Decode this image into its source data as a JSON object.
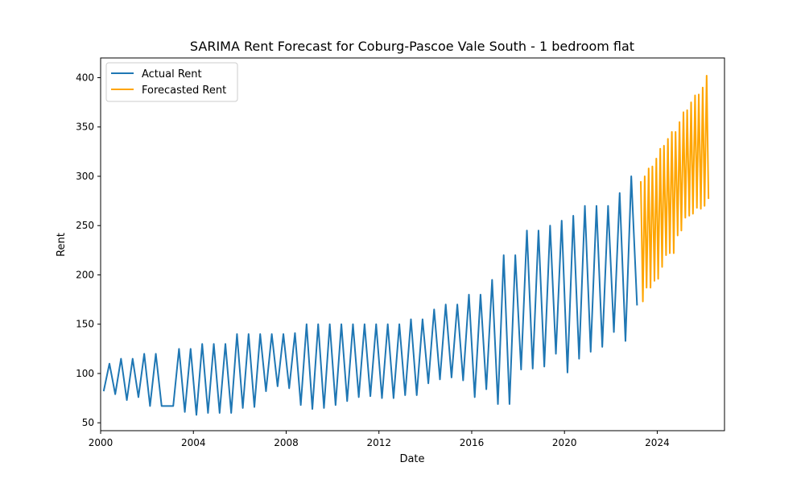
{
  "chart_data": {
    "type": "line",
    "title": "SARIMA Rent Forecast for Coburg-Pascoe Vale South - 1 bedroom flat",
    "xlabel": "Date",
    "ylabel": "Rent",
    "xlim": [
      2000.0,
      2026.9
    ],
    "ylim": [
      42,
      420
    ],
    "x_ticks": [
      2000,
      2004,
      2008,
      2012,
      2016,
      2020,
      2024
    ],
    "y_ticks": [
      50,
      100,
      150,
      200,
      250,
      300,
      350,
      400
    ],
    "grid": false,
    "legend_position": "top-left",
    "series": [
      {
        "name": "Actual Rent",
        "color": "#1f77b4",
        "x": [
          2000.13,
          2000.38,
          2000.63,
          2000.88,
          2001.13,
          2001.38,
          2001.63,
          2001.88,
          2002.13,
          2002.38,
          2002.63,
          2002.88,
          2003.13,
          2003.38,
          2003.63,
          2003.88,
          2004.13,
          2004.38,
          2004.63,
          2004.88,
          2005.13,
          2005.38,
          2005.63,
          2005.88,
          2006.13,
          2006.38,
          2006.63,
          2006.88,
          2007.13,
          2007.38,
          2007.63,
          2007.88,
          2008.13,
          2008.38,
          2008.63,
          2008.88,
          2009.13,
          2009.38,
          2009.63,
          2009.88,
          2010.13,
          2010.38,
          2010.63,
          2010.88,
          2011.13,
          2011.38,
          2011.63,
          2011.88,
          2012.13,
          2012.38,
          2012.63,
          2012.88,
          2013.13,
          2013.38,
          2013.63,
          2013.88,
          2014.13,
          2014.38,
          2014.63,
          2014.88,
          2015.13,
          2015.38,
          2015.63,
          2015.88,
          2016.13,
          2016.38,
          2016.63,
          2016.88,
          2017.13,
          2017.38,
          2017.63,
          2017.88,
          2018.13,
          2018.38,
          2018.63,
          2018.88,
          2019.13,
          2019.38,
          2019.63,
          2019.88,
          2020.13,
          2020.38,
          2020.63,
          2020.88,
          2021.13,
          2021.38,
          2021.63,
          2021.88,
          2022.13,
          2022.38,
          2022.63,
          2022.88,
          2023.13
        ],
        "y": [
          82,
          110,
          79,
          115,
          73,
          115,
          76,
          120,
          67,
          120,
          67,
          67,
          67,
          125,
          61,
          125,
          58,
          130,
          60,
          130,
          60,
          130,
          60,
          140,
          65,
          140,
          66,
          140,
          82,
          140,
          87,
          140,
          85,
          141,
          68,
          150,
          64,
          150,
          65,
          150,
          68,
          150,
          72,
          150,
          76,
          150,
          77,
          150,
          75,
          150,
          75,
          150,
          78,
          155,
          78,
          155,
          90,
          165,
          94,
          170,
          96,
          170,
          93,
          180,
          76,
          180,
          84,
          195,
          69,
          220,
          69,
          220,
          104,
          245,
          105,
          245,
          107,
          250,
          120,
          255,
          101,
          260,
          115,
          270,
          122,
          270,
          127,
          270,
          142,
          283,
          133,
          300,
          169
        ]
      },
      {
        "name": "Forecasted Rent",
        "color": "#ffa500",
        "x": [
          2023.29,
          2023.38,
          2023.46,
          2023.54,
          2023.63,
          2023.71,
          2023.79,
          2023.88,
          2023.96,
          2024.04,
          2024.13,
          2024.21,
          2024.29,
          2024.38,
          2024.46,
          2024.54,
          2024.63,
          2024.71,
          2024.79,
          2024.88,
          2024.96,
          2025.04,
          2025.13,
          2025.21,
          2025.29,
          2025.38,
          2025.46,
          2025.54,
          2025.63,
          2025.71,
          2025.79,
          2025.88,
          2025.96,
          2026.04,
          2026.13,
          2026.21
        ],
        "y": [
          295,
          173,
          300,
          187,
          308,
          187,
          310,
          194,
          318,
          196,
          328,
          208,
          331,
          220,
          338,
          222,
          345,
          222,
          345,
          240,
          355,
          245,
          365,
          258,
          367,
          260,
          375,
          262,
          382,
          268,
          383,
          267,
          390,
          270,
          402,
          277
        ]
      }
    ]
  }
}
